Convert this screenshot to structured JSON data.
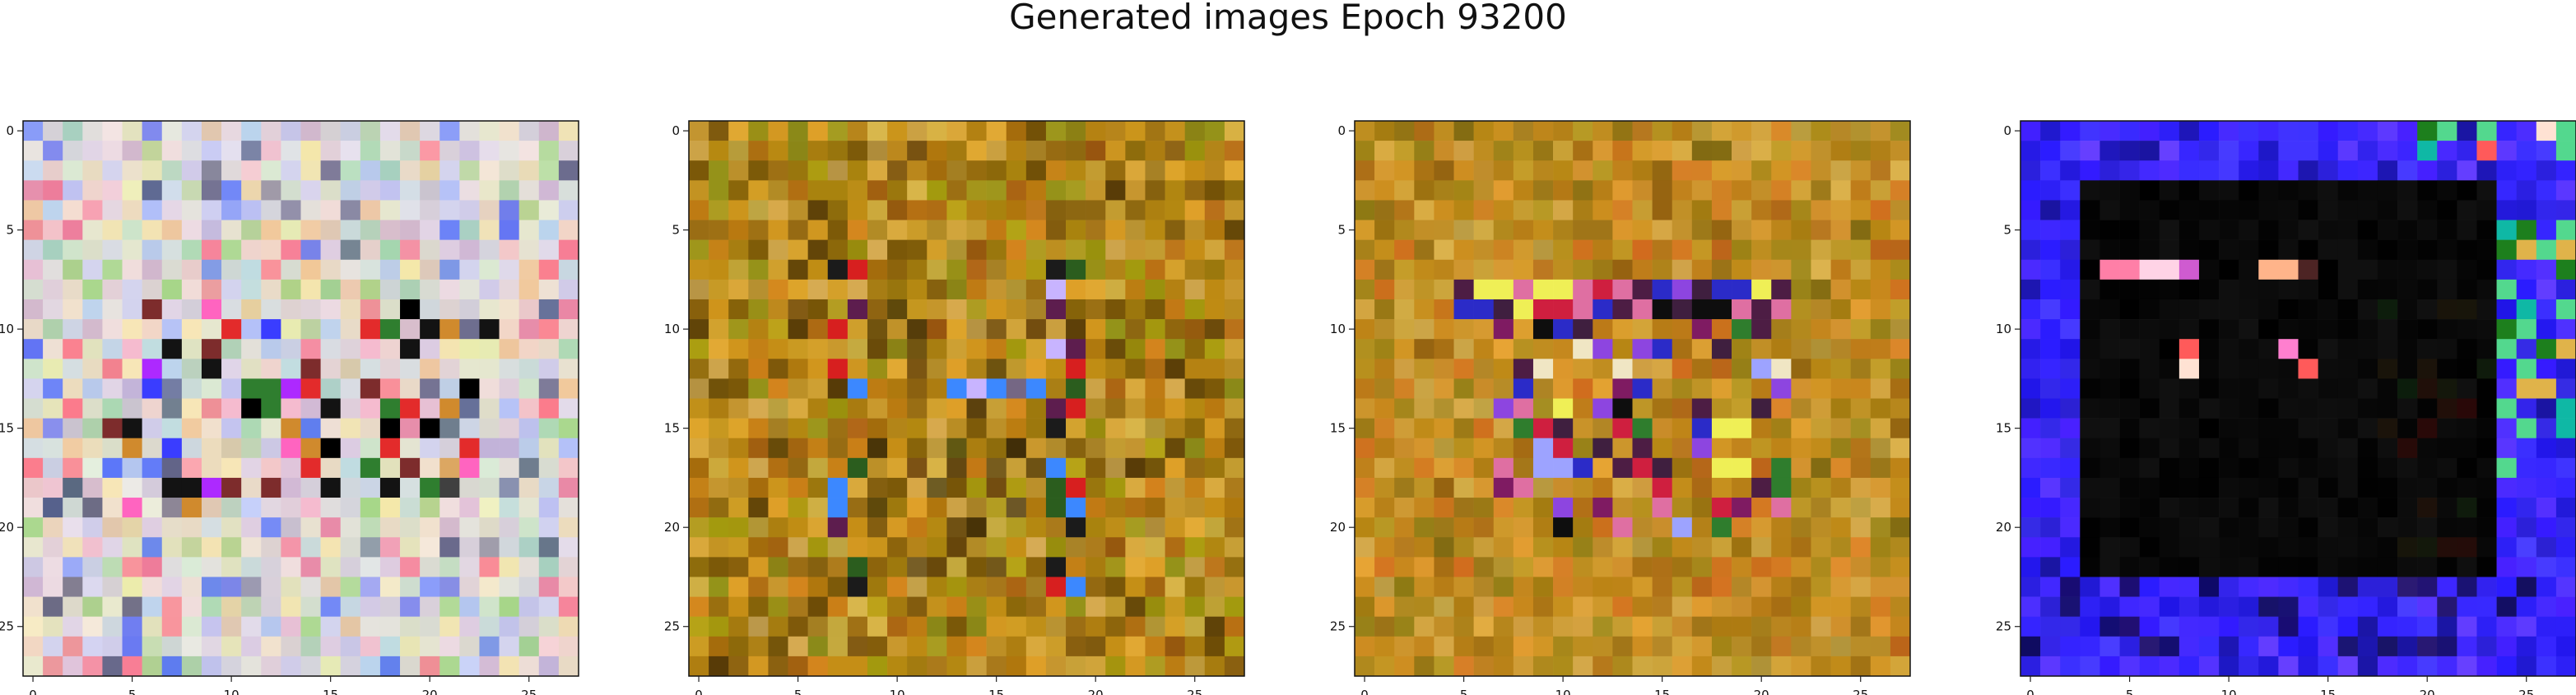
{
  "figure": {
    "title": "Generated images Epoch 93200"
  },
  "chart_data": [
    {
      "type": "heatmap",
      "title": "",
      "xlabel": "",
      "ylabel": "",
      "grid": false,
      "x_ticks": [
        0,
        5,
        10,
        15,
        20,
        25
      ],
      "y_ticks": [
        0,
        5,
        10,
        15,
        20,
        25
      ],
      "xlim": [
        -0.5,
        27.5
      ],
      "ylim": [
        27.5,
        -0.5
      ],
      "image_shape": [
        28,
        28,
        3
      ],
      "palette": [
        "#efe1e8",
        "#ddebd6",
        "#f2d4c5",
        "#d9d6ef",
        "#e7dfb3",
        "#c7ccd8",
        "#f4b7c8",
        "#c8e3c8",
        "#f0e8d0",
        "#d3c8e6",
        "#bda4cf",
        "#8dcfa0",
        "#f5ef9b",
        "#b2d6ed",
        "#f0c07f",
        "#ff4f6e",
        "#2147ff",
        "#19285a",
        "#8fcf68",
        "#a3b6ff"
      ],
      "accent_colors": [
        "#000000",
        "#131313",
        "#f5bbcf",
        "#3a3dff",
        "#d7c9ab",
        "#e32b2b",
        "#7d2c2c",
        "#ad29ff",
        "#2f7e2f",
        "#f7e6b7",
        "#d08a2d",
        "#ff64c0"
      ],
      "dominant_colors": [
        "#ead3dc",
        "#d8e6ce",
        "#f2d8ca",
        "#cdd1ed"
      ]
    },
    {
      "type": "heatmap",
      "title": "",
      "xlabel": "",
      "ylabel": "",
      "grid": false,
      "x_ticks": [
        0,
        5,
        10,
        15,
        20,
        25
      ],
      "y_ticks": [
        0,
        5,
        10,
        15,
        20,
        25
      ],
      "xlim": [
        -0.5,
        27.5
      ],
      "ylim": [
        27.5,
        -0.5
      ],
      "image_shape": [
        28,
        28,
        3
      ],
      "palette": [
        "#c98e16",
        "#bf8c13",
        "#a9820e",
        "#e2a02b",
        "#8f6d0c",
        "#6d4a06",
        "#b56d0d",
        "#d9b04e",
        "#8a9a1f",
        "#9d4b11",
        "#3b2205",
        "#cf7418",
        "#d4b16b",
        "#7f5812",
        "#a0a50e",
        "#e7b13f",
        "#d7c25f",
        "#b89036",
        "#5f3e04",
        "#e0a92f"
      ],
      "accent_colors": [
        "#1b1b1b",
        "#d71f1f",
        "#3c88ff",
        "#c8b4ff",
        "#2b5d1e",
        "#5d1d4e",
        "#f0f2cf",
        "#6b2b2b",
        "#a64714",
        "#202008"
      ],
      "dominant_colors": [
        "#c18f16",
        "#a9840e",
        "#da9f25",
        "#8d6a0b"
      ]
    },
    {
      "type": "heatmap",
      "title": "",
      "xlabel": "",
      "ylabel": "",
      "grid": false,
      "x_ticks": [
        0,
        5,
        10,
        15,
        20,
        25
      ],
      "y_ticks": [
        0,
        5,
        10,
        15,
        20,
        25
      ],
      "xlim": [
        -0.5,
        27.5
      ],
      "ylim": [
        27.5,
        -0.5
      ],
      "image_shape": [
        28,
        28,
        3
      ],
      "palette": [
        "#d19222",
        "#c8881a",
        "#b58210",
        "#e2a43c",
        "#a7710e",
        "#df7b2b",
        "#d3ad48",
        "#d99a39",
        "#8f7d13",
        "#b6a12c",
        "#e0bf61",
        "#c99132",
        "#7c6511",
        "#d55d1d",
        "#9f8a1b",
        "#d4b15d",
        "#f0a93a",
        "#b57314",
        "#b69320",
        "#9b5a0f"
      ],
      "accent_colors": [
        "#0e0e0e",
        "#3f1f3f",
        "#8d45e0",
        "#cf1f3f",
        "#2b2bc8",
        "#efef56",
        "#df6fa2",
        "#4d1d44",
        "#f0e6c4",
        "#9da3ff",
        "#7f1b62",
        "#2f7d2d"
      ],
      "dominant_colors": [
        "#d39a27",
        "#c98720",
        "#ba8d1a",
        "#8d7413"
      ]
    },
    {
      "type": "heatmap",
      "title": "",
      "xlabel": "",
      "ylabel": "",
      "grid": false,
      "x_ticks": [
        0,
        5,
        10,
        15,
        20,
        25
      ],
      "y_ticks": [
        0,
        5,
        10,
        15,
        20,
        25
      ],
      "xlim": [
        -0.5,
        27.5
      ],
      "ylim": [
        27.5,
        -0.5
      ],
      "image_shape": [
        28,
        28,
        3
      ],
      "palette": [
        "#2b1cff",
        "#3f2cff",
        "#5533ff",
        "#1a11d9",
        "#6a37ff",
        "#2c24b8",
        "#3b2bda",
        "#4a42ff",
        "#7c4aff",
        "#1616a6",
        "#10106b",
        "#3d1aff",
        "#6b3cff",
        "#5c52ff",
        "#4131ff",
        "#2f23f0",
        "#1f17c7",
        "#8c56ff",
        "#3c35d4",
        "#5a24ff"
      ],
      "accent_colors": [
        "#000000",
        "#0d0d0d",
        "#141414",
        "#ff7fa7",
        "#ffd3e6",
        "#ffb48a",
        "#ff5a5a",
        "#ffe2d3",
        "#0fb8a5",
        "#53d88e",
        "#e0b34a",
        "#1d7f1d"
      ],
      "dominant_colors": [
        "#3a2cff",
        "#000000",
        "#5d3cff",
        "#151515"
      ]
    }
  ]
}
